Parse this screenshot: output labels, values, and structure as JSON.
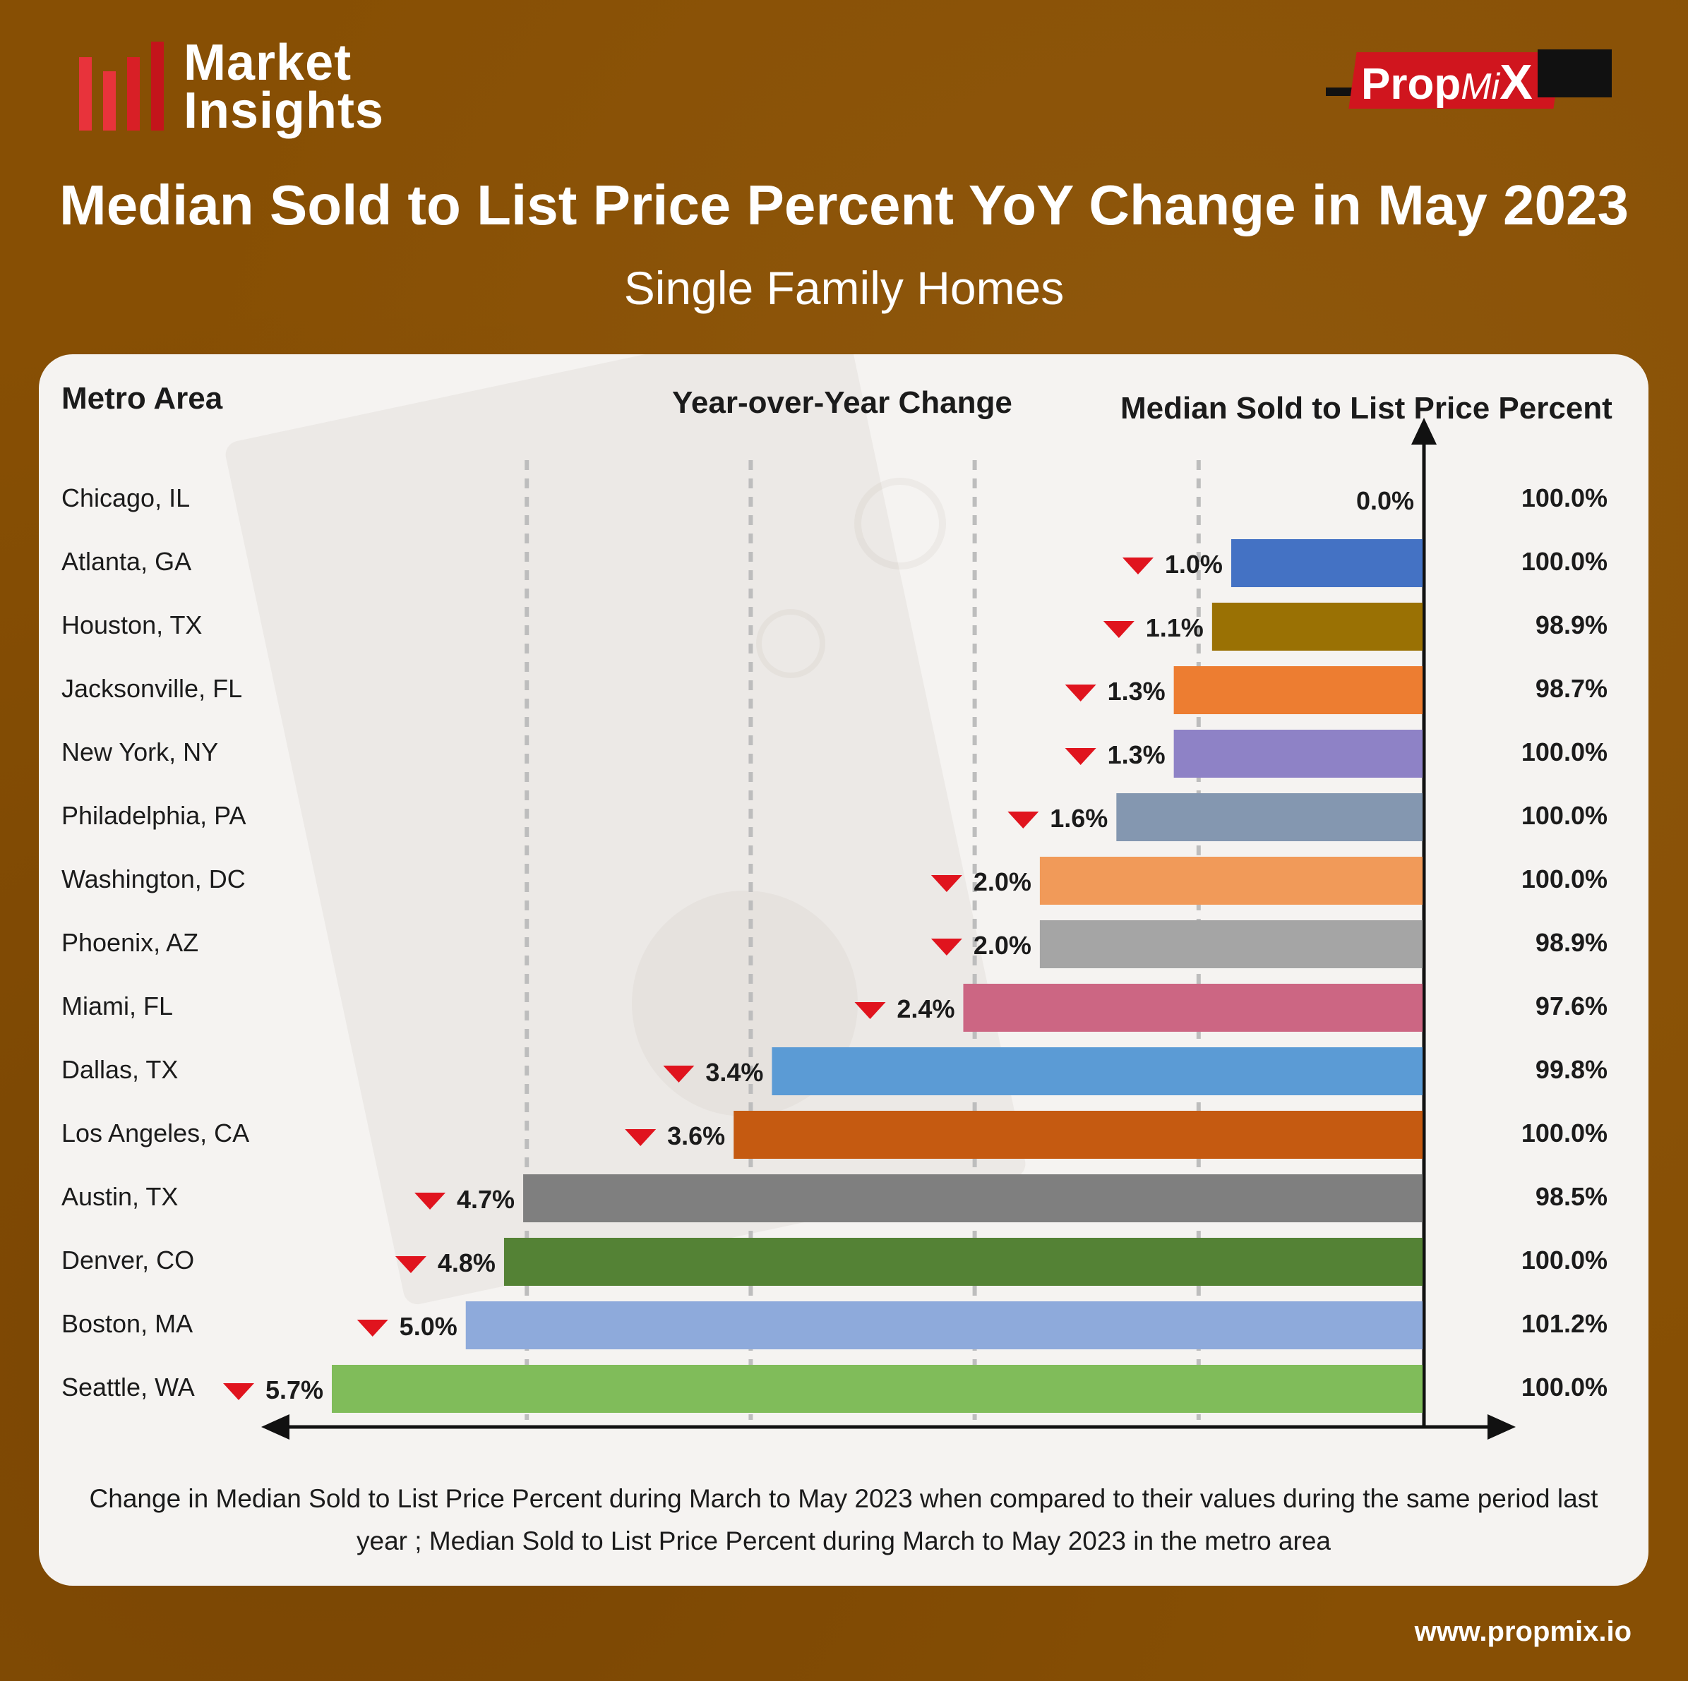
{
  "brand": {
    "left_logo_line1": "Market",
    "left_logo_line2": "Insights",
    "right_logo_prop": "Prop",
    "right_logo_mi": "Mi",
    "right_logo_x": "X",
    "website": "www.propmix.io"
  },
  "colors": {
    "background": "#874f04",
    "down_marker": "#e0141e",
    "card": "#f5f3f1"
  },
  "chart_data": {
    "type": "bar",
    "orientation": "horizontal",
    "title": "Median Sold to List Price Percent YoY Change in May 2023",
    "subtitle": "Single Family Homes",
    "column_headers": {
      "category": "Metro Area",
      "change": "Year-over-Year Change",
      "value": "Median Sold to List Price Percent"
    },
    "categories": [
      "Chicago, IL",
      "Atlanta, GA",
      "Houston, TX",
      "Jacksonville, FL",
      "New York, NY",
      "Philadelphia, PA",
      "Washington, DC",
      "Phoenix, AZ",
      "Miami, FL",
      "Dallas, TX",
      "Los Angeles, CA",
      "Austin, TX",
      "Denver, CO",
      "Boston, MA",
      "Seattle, WA"
    ],
    "yoy_change_values": [
      0.0,
      -1.0,
      -1.1,
      -1.3,
      -1.3,
      -1.6,
      -2.0,
      -2.0,
      -2.4,
      -3.4,
      -3.6,
      -4.7,
      -4.8,
      -5.0,
      -5.7
    ],
    "yoy_change_labels": [
      "0.0%",
      "1.0%",
      "1.1%",
      "1.3%",
      "1.3%",
      "1.6%",
      "2.0%",
      "2.0%",
      "2.4%",
      "3.4%",
      "3.6%",
      "4.7%",
      "4.8%",
      "5.0%",
      "5.7%"
    ],
    "direction": [
      "none",
      "down",
      "down",
      "down",
      "down",
      "down",
      "down",
      "down",
      "down",
      "down",
      "down",
      "down",
      "down",
      "down",
      "down"
    ],
    "sold_to_list_values": [
      100.0,
      100.0,
      98.9,
      98.7,
      100.0,
      100.0,
      100.0,
      98.9,
      97.6,
      99.8,
      100.0,
      98.5,
      100.0,
      101.2,
      100.0
    ],
    "sold_to_list_labels": [
      "100.0%",
      "100.0%",
      "98.9%",
      "98.7%",
      "100.0%",
      "100.0%",
      "100.0%",
      "98.9%",
      "97.6%",
      "99.8%",
      "100.0%",
      "98.5%",
      "100.0%",
      "101.2%",
      "100.0%"
    ],
    "bar_colors": [
      "#ffffff",
      "#4472c4",
      "#9a7104",
      "#ed7d31",
      "#8e82c6",
      "#8497b0",
      "#f19a59",
      "#a5a5a5",
      "#cc6683",
      "#5b9bd5",
      "#c55a11",
      "#7f7f7f",
      "#548235",
      "#8eaadb",
      "#80bc5a"
    ],
    "grid": "dashed vertical lines",
    "caption": "Change in Median Sold to List Price Percent during March to May 2023 when compared to their values during the same period last year ; Median Sold to List Price Percent during March to May 2023 in the metro area"
  }
}
